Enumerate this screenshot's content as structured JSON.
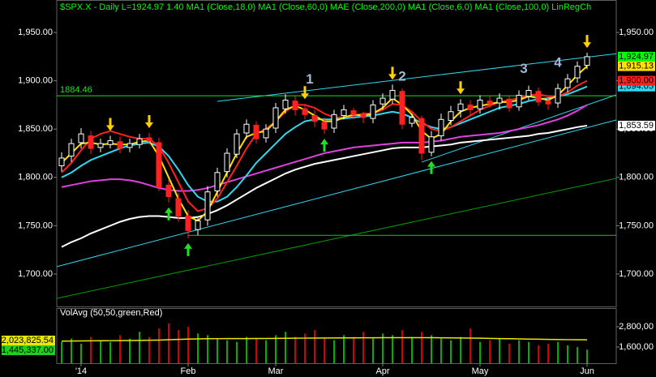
{
  "chart_data": {
    "type": "candlestick",
    "header": "$SPX.X - Daily   L=1924.97   1.40    MA1 (Close,18,0)   MA1 (Close,60,0)   MAE (Close,200,0)   MA1 (Close,6,0)   MA1 (Close,100,0)   LinRegCh",
    "categories": [
      null,
      null,
      "'14",
      null,
      null,
      null,
      null,
      null,
      null,
      null,
      null,
      null,
      null,
      "Feb",
      null,
      null,
      null,
      null,
      null,
      null,
      null,
      null,
      "Mar",
      null,
      null,
      null,
      null,
      null,
      null,
      null,
      null,
      null,
      null,
      "Apr",
      null,
      null,
      null,
      null,
      null,
      null,
      null,
      null,
      null,
      "May",
      null,
      null,
      null,
      null,
      null,
      null,
      null,
      null,
      null,
      null,
      "Jun"
    ],
    "open": [
      1812,
      1822,
      1836,
      1843,
      1831,
      1834,
      1837,
      1831,
      1834,
      1841,
      1836,
      1792,
      1778,
      1760,
      1746,
      1756,
      1786,
      1806,
      1824,
      1846,
      1854,
      1841,
      1851,
      1871,
      1879,
      1871,
      1864,
      1857,
      1851,
      1864,
      1869,
      1866,
      1861,
      1876,
      1881,
      1889,
      1856,
      1861,
      1826,
      1843,
      1859,
      1869,
      1875,
      1871,
      1879,
      1877,
      1881,
      1873,
      1884,
      1889,
      1879,
      1877,
      1893,
      1903,
      1916
    ],
    "high": [
      1826,
      1840,
      1851,
      1848,
      1840,
      1843,
      1842,
      1840,
      1845,
      1846,
      1841,
      1798,
      1784,
      1766,
      1758,
      1791,
      1810,
      1830,
      1850,
      1860,
      1858,
      1855,
      1877,
      1886,
      1884,
      1876,
      1870,
      1862,
      1870,
      1875,
      1872,
      1868,
      1880,
      1887,
      1896,
      1892,
      1866,
      1864,
      1848,
      1866,
      1874,
      1881,
      1880,
      1885,
      1884,
      1887,
      1884,
      1890,
      1895,
      1893,
      1882,
      1897,
      1907,
      1920,
      1929
    ],
    "low": [
      1806,
      1816,
      1830,
      1824,
      1826,
      1830,
      1825,
      1826,
      1830,
      1834,
      1786,
      1774,
      1754,
      1737,
      1740,
      1750,
      1780,
      1800,
      1820,
      1840,
      1835,
      1836,
      1846,
      1866,
      1864,
      1860,
      1852,
      1845,
      1846,
      1860,
      1860,
      1856,
      1856,
      1870,
      1876,
      1850,
      1852,
      1818,
      1822,
      1838,
      1854,
      1862,
      1864,
      1866,
      1872,
      1870,
      1868,
      1869,
      1880,
      1874,
      1870,
      1872,
      1888,
      1898,
      1912
    ],
    "close": [
      1820,
      1835,
      1845,
      1830,
      1835,
      1838,
      1830,
      1835,
      1840,
      1838,
      1790,
      1780,
      1760,
      1745,
      1755,
      1785,
      1805,
      1825,
      1845,
      1855,
      1840,
      1850,
      1872,
      1880,
      1870,
      1865,
      1858,
      1850,
      1865,
      1870,
      1865,
      1862,
      1875,
      1882,
      1890,
      1855,
      1862,
      1825,
      1842,
      1860,
      1868,
      1876,
      1870,
      1880,
      1876,
      1882,
      1872,
      1885,
      1890,
      1878,
      1876,
      1892,
      1902,
      1915,
      1924.97
    ],
    "close_label": "1,924.97",
    "close_label_color": "#00ff00",
    "up_color": "#ffffff",
    "down_color": "#ff2020",
    "ylim": [
      1666.4,
      1983.6
    ],
    "yticks": [
      {
        "value": 1700,
        "label": "1,700.00"
      },
      {
        "value": 1750,
        "label": "1,750.00"
      },
      {
        "value": 1800,
        "label": "1,800.00"
      },
      {
        "value": 1850,
        "label": "1,850.00"
      },
      {
        "value": 1900,
        "label": "1,900.00"
      },
      {
        "value": 1950,
        "label": "1,950.00"
      }
    ],
    "series": [
      {
        "color": "#ffffff",
        "values": [
          1728,
          1733,
          1737,
          1742,
          1746,
          1750,
          1754,
          1757,
          1759,
          1760,
          1760,
          1759,
          1758,
          1758,
          1759,
          1762,
          1766,
          1771,
          1777,
          1783,
          1789,
          1794,
          1799,
          1804,
          1808,
          1811,
          1814,
          1816,
          1818,
          1820,
          1822,
          1824,
          1826,
          1828,
          1830,
          1831,
          1831,
          1831,
          1832,
          1833,
          1834,
          1836,
          1837,
          1838,
          1839,
          1840,
          1841,
          1842,
          1843,
          1845,
          1846,
          1848,
          1850,
          1852,
          1853.59
        ],
        "last_label": "1,853.59"
      },
      {
        "color": "#e040e0",
        "values": [
          1790,
          1792,
          1794,
          1796,
          1797,
          1798,
          1798,
          1797,
          1795,
          1792,
          1789,
          1787,
          1786,
          1786,
          1787,
          1789,
          1792,
          1795,
          1798,
          1801,
          1804,
          1807,
          1810,
          1813,
          1816,
          1819,
          1822,
          1825,
          1827,
          1829,
          1831,
          1832,
          1833,
          1834,
          1835,
          1836,
          1836,
          1836,
          1837,
          1838,
          1840,
          1842,
          1843,
          1844,
          1845,
          1846,
          1848,
          1850,
          1852,
          1854,
          1857,
          1860,
          1864,
          1869,
          1875
        ]
      },
      {
        "color": "#30d8f0",
        "values": [
          1800,
          1805,
          1812,
          1818,
          1822,
          1826,
          1830,
          1833,
          1835,
          1836,
          1832,
          1822,
          1808,
          1792,
          1780,
          1775,
          1775,
          1780,
          1790,
          1802,
          1815,
          1825,
          1835,
          1845,
          1852,
          1858,
          1860,
          1860,
          1860,
          1861,
          1862,
          1863,
          1864,
          1866,
          1868,
          1866,
          1862,
          1856,
          1852,
          1850,
          1852,
          1856,
          1860,
          1864,
          1868,
          1872,
          1874,
          1876,
          1879,
          1881,
          1882,
          1884,
          1886,
          1890,
          1894.05
        ],
        "last_label": "1,894.05"
      },
      {
        "color": "#ff2020",
        "values": [
          1805,
          1815,
          1828,
          1840,
          1845,
          1848,
          1845,
          1842,
          1840,
          1840,
          1832,
          1815,
          1795,
          1775,
          1765,
          1768,
          1778,
          1795,
          1812,
          1830,
          1845,
          1850,
          1858,
          1868,
          1875,
          1875,
          1872,
          1866,
          1862,
          1862,
          1864,
          1866,
          1866,
          1870,
          1876,
          1875,
          1868,
          1858,
          1850,
          1848,
          1852,
          1858,
          1864,
          1870,
          1874,
          1878,
          1880,
          1882,
          1885,
          1886,
          1884,
          1884,
          1888,
          1895,
          1900
        ],
        "last_label": "1,900.00"
      },
      {
        "color": "#ffe000",
        "values": [
          1815,
          1825,
          1835,
          1836,
          1834,
          1835,
          1834,
          1834,
          1837,
          1838,
          1822,
          1800,
          1778,
          1760,
          1755,
          1765,
          1785,
          1805,
          1825,
          1842,
          1846,
          1848,
          1858,
          1870,
          1874,
          1870,
          1864,
          1858,
          1858,
          1862,
          1865,
          1864,
          1866,
          1872,
          1882,
          1875,
          1865,
          1848,
          1840,
          1845,
          1858,
          1868,
          1872,
          1874,
          1876,
          1878,
          1878,
          1880,
          1884,
          1882,
          1880,
          1885,
          1895,
          1906,
          1915.13
        ],
        "last_label": "1,915.13"
      }
    ],
    "hline": {
      "value": 1884.46,
      "label": "1884.46",
      "color": "#20e020"
    },
    "trendlines": [
      {
        "from": [
          -0.5,
          1674.8
        ],
        "to": [
          57,
          1799
        ],
        "color": "#00a000"
      },
      {
        "from": [
          13,
          1740
        ],
        "to": [
          57,
          1740
        ],
        "color": "#20c020"
      },
      {
        "from": [
          -0.5,
          1707.6
        ],
        "to": [
          57,
          1859.4
        ],
        "color": "#30d8f0"
      },
      {
        "from": [
          37,
          1815.8
        ],
        "to": [
          57,
          1885.4
        ],
        "color": "#30d8f0"
      },
      {
        "from": [
          16,
          1878.7
        ],
        "to": [
          57,
          1928
        ],
        "color": "#30d8f0"
      }
    ],
    "signals": {
      "down": [
        5,
        9,
        25,
        34,
        41,
        54
      ],
      "up": [
        11,
        13,
        27,
        38
      ],
      "down_color": "#ffd000",
      "up_color": "#20e020"
    },
    "annotations": [
      {
        "text": "1",
        "x": 25.5,
        "y": 1901
      },
      {
        "text": "2",
        "x": 35,
        "y": 1904
      },
      {
        "text": "3",
        "x": 47.5,
        "y": 1912
      },
      {
        "text": "4",
        "x": 51,
        "y": 1918
      }
    ],
    "volume": {
      "title": "VolAvg (50,50,green,Red)",
      "values": [
        1900000,
        2100000,
        1800000,
        2200000,
        2000000,
        1900000,
        2300000,
        2100000,
        2500000,
        2200000,
        2700000,
        3000000,
        2600000,
        2800000,
        2400000,
        2300000,
        2100000,
        2000000,
        1900000,
        2200000,
        2100000,
        2000000,
        2300000,
        2500000,
        2200000,
        2400000,
        2600000,
        2100000,
        2000000,
        2300000,
        2200000,
        2500000,
        2100000,
        2400000,
        2300000,
        2600000,
        2200000,
        2500000,
        2300000,
        2100000,
        2000000,
        2200000,
        2700000,
        1900000,
        2000000,
        2100000,
        1800000,
        2000000,
        1900000,
        1700000,
        1800000,
        1900000,
        1700000,
        1600000,
        1445337
      ],
      "avg": [
        1950000,
        1955000,
        1960000,
        1965000,
        1970000,
        1975000,
        1980000,
        1985000,
        1990000,
        2000000,
        2010000,
        2030000,
        2050000,
        2070000,
        2080000,
        2090000,
        2095000,
        2100000,
        2100000,
        2100000,
        2105000,
        2105000,
        2110000,
        2115000,
        2120000,
        2125000,
        2130000,
        2135000,
        2135000,
        2140000,
        2140000,
        2145000,
        2145000,
        2150000,
        2150000,
        2150000,
        2150000,
        2150000,
        2150000,
        2145000,
        2140000,
        2135000,
        2130000,
        2120000,
        2110000,
        2100000,
        2090000,
        2080000,
        2070000,
        2060000,
        2050000,
        2045000,
        2035000,
        2030000,
        2023825.54
      ],
      "avg_color": "#e8e800",
      "up_color": "#00b000",
      "down_color": "#d00000",
      "last_label": "1,445,337.00",
      "avg_last_label": "2,023,825.54",
      "ylim": [
        640000,
        3904000
      ],
      "yticks": [
        {
          "value": 2800000,
          "label": "2,800,00"
        },
        {
          "value": 1600000,
          "label": "1,600,00"
        }
      ]
    }
  }
}
